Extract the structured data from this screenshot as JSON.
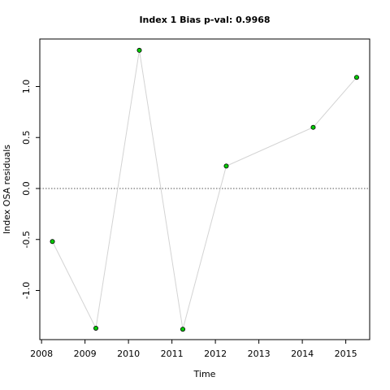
{
  "chart_data": {
    "type": "line",
    "title": "Index 1 Bias p-val: 0.9968",
    "title_color": "#228b22",
    "x_label": "Time",
    "y_label": "Index OSA residuals",
    "x": [
      2008.25,
      2009.25,
      2010.25,
      2011.25,
      2012.25,
      2014.25,
      2015.25
    ],
    "series": [
      {
        "values": [
          -0.52,
          -1.37,
          1.355,
          -1.38,
          0.22,
          0.6,
          1.09
        ],
        "color": "#00cc00",
        "line_color": "#d3d3d3"
      }
    ],
    "xlim": [
      2007.96,
      2015.55
    ],
    "xticks": [
      2008,
      2009,
      2010,
      2011,
      2012,
      2013,
      2014,
      2015
    ],
    "ylim": [
      -1.482,
      1.466
    ],
    "yticks": [
      {
        "value": -1,
        "label": "-1.0"
      },
      {
        "value": -0.5,
        "label": "-0.5"
      },
      {
        "value": 0,
        "label": "0.0"
      },
      {
        "value": 0.5,
        "label": "0.5"
      },
      {
        "value": 1,
        "label": "1.0"
      }
    ],
    "reference_line": 0
  }
}
